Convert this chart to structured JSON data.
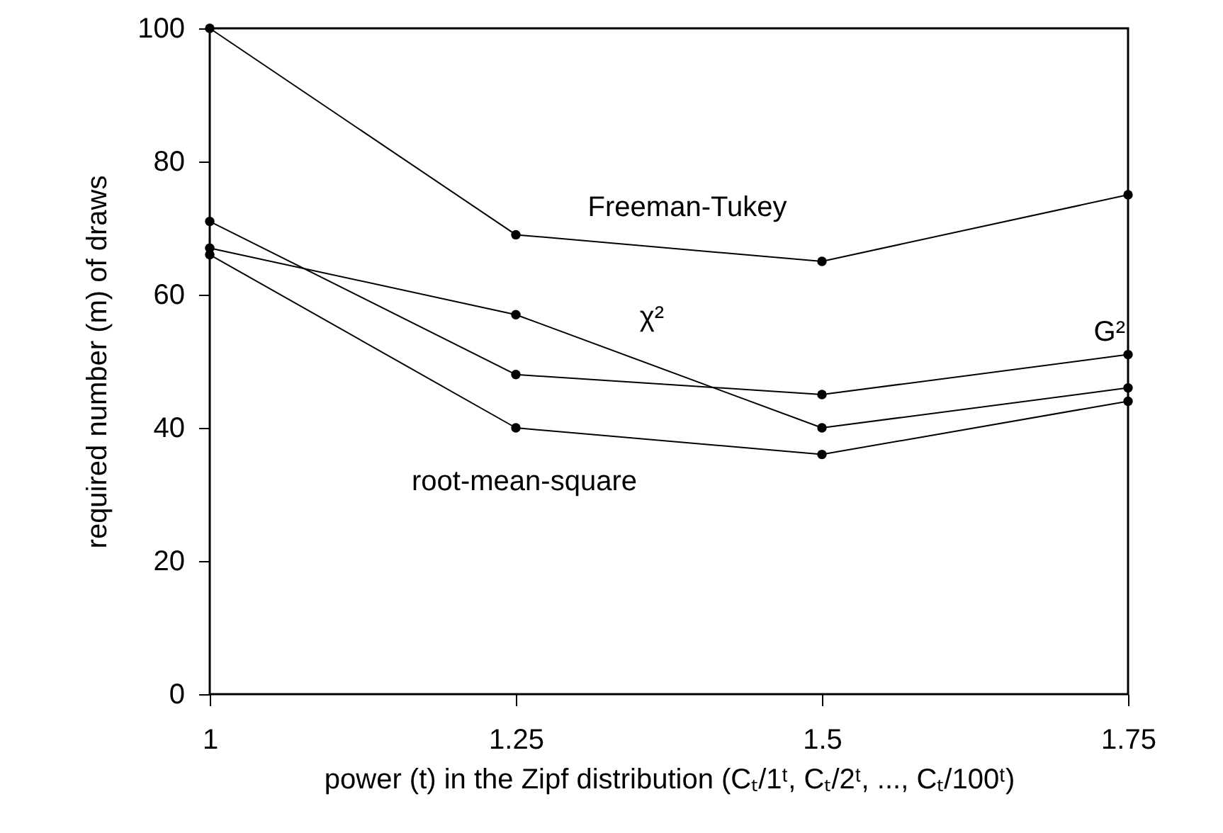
{
  "chart_data": {
    "type": "line",
    "xlabel": "power (t) in the Zipf distribution (Cₜ/1ᵗ, Cₜ/2ᵗ, ..., Cₜ/100ᵗ)",
    "ylabel": "required number (m) of draws",
    "x": [
      1,
      1.25,
      1.5,
      1.75
    ],
    "series": [
      {
        "name": "Freeman-Tukey",
        "color": "#000000",
        "values": [
          100,
          69,
          65,
          75
        ]
      },
      {
        "name": "χ²",
        "color": "#000000",
        "values": [
          67,
          57,
          40,
          46
        ]
      },
      {
        "name": "G²",
        "color": "#000000",
        "values": [
          71,
          48,
          45,
          51
        ]
      },
      {
        "name": "root-mean-square",
        "color": "#000000",
        "values": [
          66,
          40,
          36,
          44
        ]
      }
    ],
    "xlim": [
      1,
      1.75
    ],
    "xticks": [
      1,
      1.25,
      1.5,
      1.75
    ],
    "ylim": [
      0,
      100
    ],
    "yticks": [
      0,
      20,
      40,
      60,
      80,
      100
    ],
    "marker": "circle",
    "line_style": "solid"
  }
}
